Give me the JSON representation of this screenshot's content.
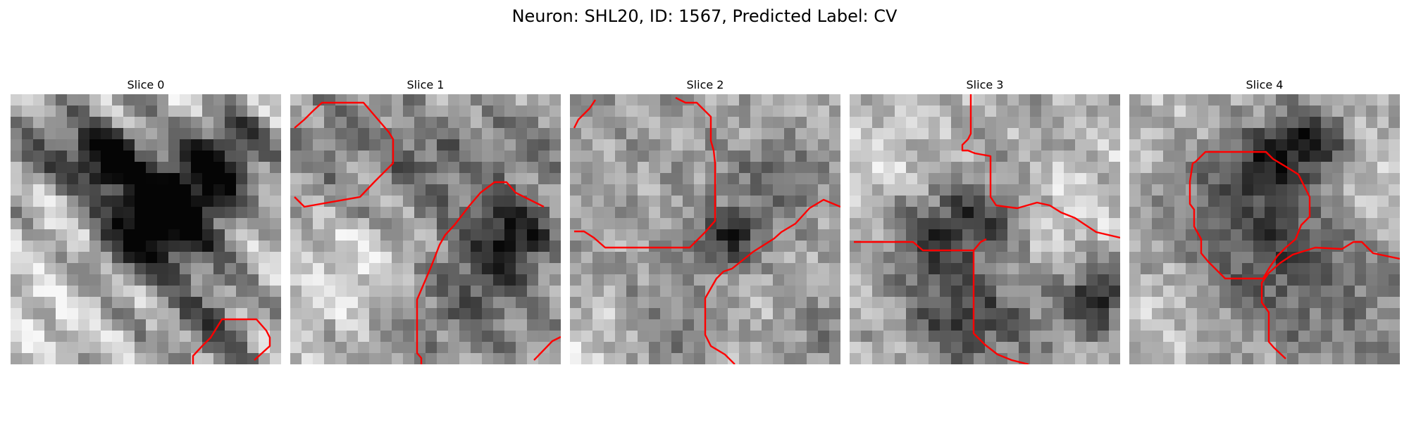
{
  "figure": {
    "title": "Neuron: SHL20, ID: 1567, Predicted Label: CV"
  },
  "panels": [
    {
      "title": "Slice 0",
      "image_description": "grayscale electron microscopy patch with dark rounded structure at center-left and red contour at bottom-right"
    },
    {
      "title": "Slice 1",
      "image_description": "grayscale electron microscopy patch with red outlined compartment at top-left and red contour on right side"
    },
    {
      "title": "Slice 2",
      "image_description": "grayscale electron microscopy patch with large bright compartment outlined in red at upper-left and red boundary line on right"
    },
    {
      "title": "Slice 3",
      "image_description": "grayscale electron microscopy patch with red segmentation boundaries crossing the center"
    },
    {
      "title": "Slice 4",
      "image_description": "grayscale electron microscopy patch with dark ring-shaped cell outlined in red and red line at right"
    }
  ],
  "colors": {
    "contour": "#ff0000",
    "background": "#ffffff"
  }
}
